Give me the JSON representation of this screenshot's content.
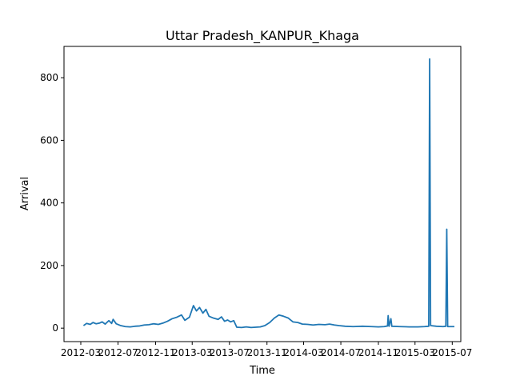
{
  "chart_data": {
    "type": "line",
    "title": "Uttar Pradesh_KANPUR_Khaga",
    "xlabel": "Time",
    "ylabel": "Arrival",
    "x_ticks": [
      "2012-03",
      "2012-07",
      "2012-11",
      "2013-03",
      "2013-07",
      "2013-11",
      "2014-03",
      "2014-07",
      "2014-11",
      "2015-03",
      "2015-07"
    ],
    "y_ticks": [
      0,
      200,
      400,
      600,
      800
    ],
    "xlim": [
      "2012-01-06",
      "2015-07-29"
    ],
    "ylim": [
      -43,
      900
    ],
    "grid": false,
    "legend": "none",
    "series": [
      {
        "color": "#1f77b4",
        "points": [
          [
            "2012-03-10",
            8
          ],
          [
            "2012-03-20",
            15
          ],
          [
            "2012-04-01",
            12
          ],
          [
            "2012-04-10",
            18
          ],
          [
            "2012-04-20",
            14
          ],
          [
            "2012-05-01",
            16
          ],
          [
            "2012-05-10",
            20
          ],
          [
            "2012-05-20",
            13
          ],
          [
            "2012-06-01",
            24
          ],
          [
            "2012-06-10",
            15
          ],
          [
            "2012-06-15",
            28
          ],
          [
            "2012-06-25",
            14
          ],
          [
            "2012-07-10",
            8
          ],
          [
            "2012-07-25",
            5
          ],
          [
            "2012-08-10",
            4
          ],
          [
            "2012-08-25",
            6
          ],
          [
            "2012-09-10",
            7
          ],
          [
            "2012-09-25",
            10
          ],
          [
            "2012-10-10",
            11
          ],
          [
            "2012-10-25",
            14
          ],
          [
            "2012-11-10",
            12
          ],
          [
            "2012-11-25",
            16
          ],
          [
            "2012-12-10",
            22
          ],
          [
            "2012-12-25",
            30
          ],
          [
            "2013-01-10",
            35
          ],
          [
            "2013-01-25",
            42
          ],
          [
            "2013-02-05",
            25
          ],
          [
            "2013-02-20",
            35
          ],
          [
            "2013-03-05",
            72
          ],
          [
            "2013-03-15",
            55
          ],
          [
            "2013-03-25",
            66
          ],
          [
            "2013-04-05",
            48
          ],
          [
            "2013-04-15",
            60
          ],
          [
            "2013-04-25",
            38
          ],
          [
            "2013-05-10",
            32
          ],
          [
            "2013-05-25",
            28
          ],
          [
            "2013-06-05",
            36
          ],
          [
            "2013-06-15",
            22
          ],
          [
            "2013-06-25",
            26
          ],
          [
            "2013-07-05",
            20
          ],
          [
            "2013-07-15",
            24
          ],
          [
            "2013-07-25",
            3
          ],
          [
            "2013-08-10",
            2
          ],
          [
            "2013-08-25",
            4
          ],
          [
            "2013-09-10",
            2
          ],
          [
            "2013-09-25",
            3
          ],
          [
            "2013-10-10",
            4
          ],
          [
            "2013-10-25",
            8
          ],
          [
            "2013-11-10",
            18
          ],
          [
            "2013-11-25",
            32
          ],
          [
            "2013-12-10",
            42
          ],
          [
            "2013-12-25",
            38
          ],
          [
            "2014-01-10",
            32
          ],
          [
            "2014-01-25",
            20
          ],
          [
            "2014-02-10",
            18
          ],
          [
            "2014-02-25",
            13
          ],
          [
            "2014-03-15",
            12
          ],
          [
            "2014-04-01",
            10
          ],
          [
            "2014-04-20",
            12
          ],
          [
            "2014-05-10",
            11
          ],
          [
            "2014-05-25",
            13
          ],
          [
            "2014-06-10",
            10
          ],
          [
            "2014-06-25",
            8
          ],
          [
            "2014-07-15",
            6
          ],
          [
            "2014-08-10",
            5
          ],
          [
            "2014-09-10",
            6
          ],
          [
            "2014-10-10",
            5
          ],
          [
            "2014-11-01",
            4
          ],
          [
            "2014-11-20",
            5
          ],
          [
            "2014-12-01",
            7
          ],
          [
            "2014-12-03",
            40
          ],
          [
            "2014-12-06",
            6
          ],
          [
            "2014-12-12",
            30
          ],
          [
            "2014-12-15",
            6
          ],
          [
            "2015-01-10",
            5
          ],
          [
            "2015-02-10",
            4
          ],
          [
            "2015-03-10",
            4
          ],
          [
            "2015-04-01",
            5
          ],
          [
            "2015-04-15",
            6
          ],
          [
            "2015-04-18",
            860
          ],
          [
            "2015-04-21",
            8
          ],
          [
            "2015-05-10",
            6
          ],
          [
            "2015-06-01",
            5
          ],
          [
            "2015-06-10",
            6
          ],
          [
            "2015-06-13",
            316
          ],
          [
            "2015-06-16",
            5
          ],
          [
            "2015-07-08",
            5
          ]
        ]
      }
    ]
  }
}
